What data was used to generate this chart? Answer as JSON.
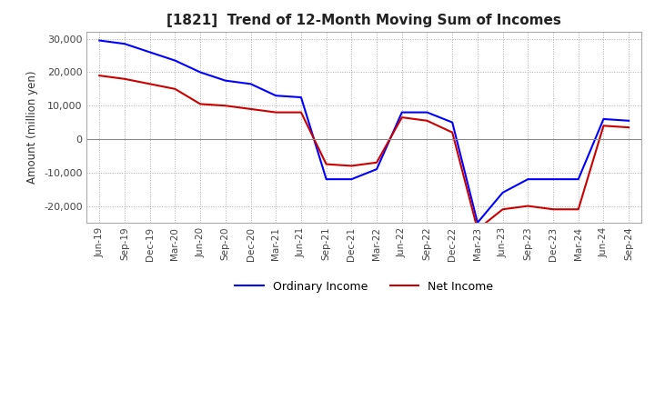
{
  "title": "[1821]  Trend of 12-Month Moving Sum of Incomes",
  "ylabel": "Amount (million yen)",
  "ylim": [
    -25000,
    32000
  ],
  "yticks": [
    -20000,
    -10000,
    0,
    10000,
    20000,
    30000
  ],
  "legend_labels": [
    "Ordinary Income",
    "Net Income"
  ],
  "line_colors": [
    "#0000ff",
    "#cc0000"
  ],
  "x_labels": [
    "Jun-19",
    "Sep-19",
    "Dec-19",
    "Mar-20",
    "Jun-20",
    "Sep-20",
    "Dec-20",
    "Mar-21",
    "Jun-21",
    "Sep-21",
    "Dec-21",
    "Mar-22",
    "Jun-22",
    "Sep-22",
    "Dec-22",
    "Mar-23",
    "Jun-23",
    "Sep-23",
    "Dec-23",
    "Mar-24",
    "Jun-24",
    "Sep-24"
  ],
  "ordinary_income": [
    29500,
    28500,
    26000,
    23500,
    20000,
    17500,
    16500,
    13000,
    12500,
    -12000,
    -12000,
    -9000,
    8000,
    8000,
    5000,
    -25000,
    -16000,
    -12000,
    -12000,
    -12000,
    6000,
    5500
  ],
  "net_income": [
    19000,
    18000,
    16500,
    15000,
    10500,
    10000,
    9000,
    8000,
    8000,
    -7500,
    -8000,
    -7000,
    6500,
    5500,
    2000,
    -27000,
    -21000,
    -20000,
    -21000,
    -21000,
    4000,
    3500
  ]
}
